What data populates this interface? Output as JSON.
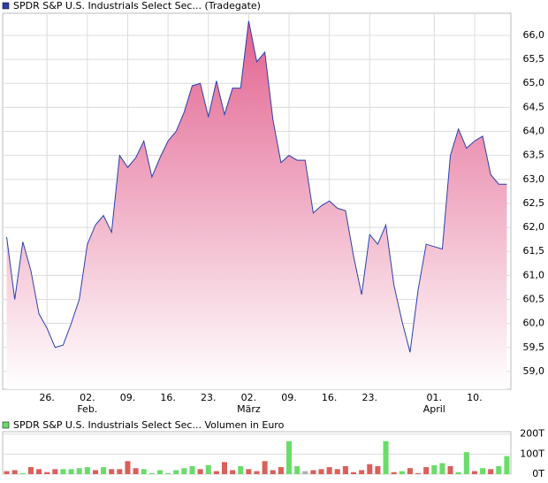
{
  "chart_data": [
    {
      "type": "area",
      "legend": "SPDR S&P U.S. Industrials Select Sec... (Tradegate)",
      "color": "#2b3fae",
      "fill_top": "#e2628f",
      "fill_bottom": "#ffffff",
      "grid": true,
      "categories": [
        null,
        null,
        null,
        null,
        null,
        "26.",
        null,
        null,
        null,
        null,
        "02.",
        null,
        null,
        null,
        null,
        "09.",
        null,
        null,
        null,
        null,
        "16.",
        null,
        null,
        null,
        null,
        "23.",
        null,
        null,
        null,
        null,
        "02.",
        null,
        null,
        null,
        null,
        "09.",
        null,
        null,
        null,
        null,
        "16.",
        null,
        null,
        null,
        null,
        "23.",
        null,
        null,
        null,
        null,
        null,
        null,
        null,
        "01.",
        null,
        null,
        null,
        null,
        "10.",
        null,
        null,
        null,
        null
      ],
      "months": [
        null,
        null,
        null,
        null,
        null,
        null,
        null,
        null,
        null,
        null,
        "Feb.",
        null,
        null,
        null,
        null,
        null,
        null,
        null,
        null,
        null,
        null,
        null,
        null,
        null,
        null,
        null,
        null,
        null,
        null,
        null,
        "März",
        null,
        null,
        null,
        null,
        null,
        null,
        null,
        null,
        null,
        null,
        null,
        null,
        null,
        null,
        null,
        null,
        null,
        null,
        null,
        null,
        null,
        null,
        "April",
        null,
        null,
        null,
        null,
        null,
        null,
        null,
        null,
        null
      ],
      "values": [
        61.8,
        60.5,
        61.7,
        61.1,
        60.2,
        59.9,
        59.5,
        59.55,
        60.0,
        60.5,
        61.65,
        62.05,
        62.25,
        61.9,
        63.5,
        63.25,
        63.45,
        63.8,
        63.05,
        63.45,
        63.8,
        64.0,
        64.4,
        64.95,
        65.0,
        64.3,
        65.05,
        64.35,
        64.9,
        64.9,
        66.3,
        65.45,
        65.65,
        64.25,
        63.35,
        63.5,
        63.4,
        63.4,
        62.3,
        62.45,
        62.55,
        62.4,
        62.35,
        61.4,
        60.6,
        61.85,
        61.65,
        62.05,
        60.8,
        60.05,
        59.4,
        60.7,
        61.65,
        61.6,
        61.55,
        63.5,
        64.05,
        63.65,
        63.8,
        63.9,
        63.1,
        62.9,
        62.9
      ],
      "ylim": [
        58.63,
        66.46
      ],
      "yticks": [
        {
          "value": 59.0,
          "label": "59,0"
        },
        {
          "value": 59.5,
          "label": "59,5"
        },
        {
          "value": 60.0,
          "label": "60,0"
        },
        {
          "value": 60.5,
          "label": "60,5"
        },
        {
          "value": 61.0,
          "label": "61,0"
        },
        {
          "value": 61.5,
          "label": "61,5"
        },
        {
          "value": 62.0,
          "label": "62,0"
        },
        {
          "value": 62.5,
          "label": "62,5"
        },
        {
          "value": 63.0,
          "label": "63,0"
        },
        {
          "value": 63.5,
          "label": "63,5"
        },
        {
          "value": 64.0,
          "label": "64,0"
        },
        {
          "value": 64.5,
          "label": "64,5"
        },
        {
          "value": 65.0,
          "label": "65,0"
        },
        {
          "value": 65.5,
          "label": "65,5"
        },
        {
          "value": 66.0,
          "label": "66,0"
        }
      ]
    },
    {
      "type": "bar",
      "legend": "SPDR S&P U.S. Industrials Select Sec... Volumen in Euro",
      "legend_color": "#66dd66",
      "grid": true,
      "values": [
        15,
        20,
        5,
        35,
        25,
        10,
        25,
        25,
        25,
        30,
        35,
        20,
        35,
        25,
        25,
        65,
        30,
        25,
        5,
        20,
        5,
        20,
        30,
        40,
        25,
        45,
        15,
        60,
        20,
        40,
        25,
        15,
        65,
        20,
        35,
        165,
        40,
        15,
        20,
        25,
        35,
        25,
        40,
        10,
        20,
        50,
        40,
        165,
        10,
        15,
        30,
        5,
        35,
        45,
        55,
        40,
        10,
        110,
        15,
        30,
        25,
        40,
        90
      ],
      "colors": [
        "#d9605c",
        "#d9605c",
        "#6bdc6b",
        "#d9605c",
        "#d9605c",
        "#d9605c",
        "#d9605c",
        "#6bdc6b",
        "#6bdc6b",
        "#6bdc6b",
        "#6bdc6b",
        "#d9605c",
        "#6bdc6b",
        "#d9605c",
        "#d9605c",
        "#d9605c",
        "#d9605c",
        "#6bdc6b",
        "#6bdc6b",
        "#6bdc6b",
        "#6bdc6b",
        "#6bdc6b",
        "#6bdc6b",
        "#6bdc6b",
        "#d9605c",
        "#6bdc6b",
        "#d9605c",
        "#d9605c",
        "#d9605c",
        "#6bdc6b",
        "#d9605c",
        "#d9605c",
        "#d9605c",
        "#d9605c",
        "#d9605c",
        "#6bdc6b",
        "#6bdc6b",
        "#b0b0b0",
        "#d9605c",
        "#d9605c",
        "#d9605c",
        "#d9605c",
        "#d9605c",
        "#d9605c",
        "#d9605c",
        "#d9605c",
        "#d9605c",
        "#6bdc6b",
        "#d9605c",
        "#6bdc6b",
        "#d9605c",
        "#d9605c",
        "#d9605c",
        "#6bdc6b",
        "#6bdc6b",
        "#d9605c",
        "#6bdc6b",
        "#6bdc6b",
        "#d9605c",
        "#6bdc6b",
        "#d9605c",
        "#6bdc6b",
        "#6bdc6b"
      ],
      "ylim": [
        0,
        212
      ],
      "yticks": [
        {
          "value": 0,
          "label": "0T"
        },
        {
          "value": 100,
          "label": "100T"
        },
        {
          "value": 200,
          "label": "200T"
        }
      ]
    }
  ]
}
